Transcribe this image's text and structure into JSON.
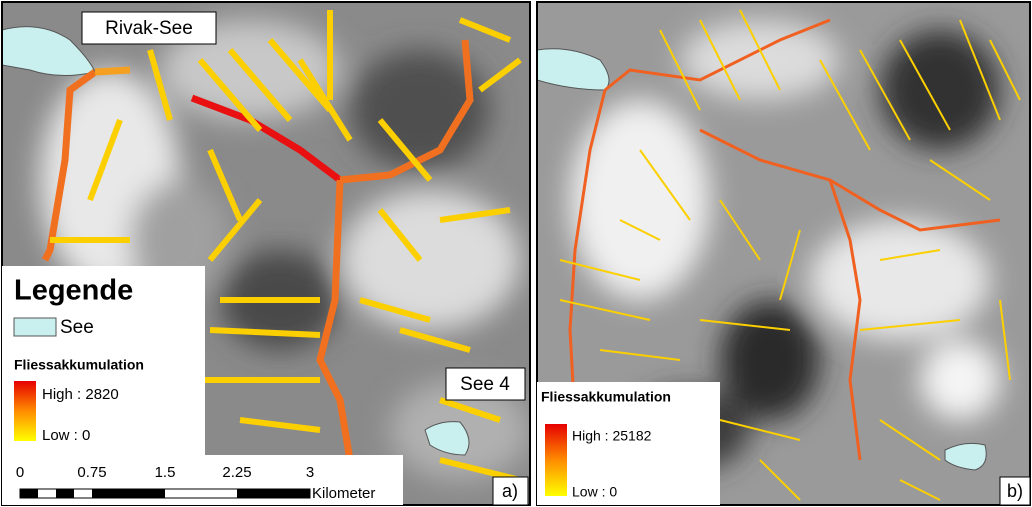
{
  "panel_a": {
    "lake_label": "Rivak-See",
    "lake_label_2": "See 4",
    "panel_label": "a)",
    "legend": {
      "title": "Legende",
      "lake": "See",
      "ramp_title": "Fliessakkumulation",
      "high": "High : 2820",
      "low": "Low : 0"
    },
    "scale_bar": {
      "labels": [
        "0",
        "0.75",
        "1.5",
        "2.25",
        "3"
      ],
      "unit": "Kilometer"
    }
  },
  "panel_b": {
    "panel_label": "b)",
    "legend": {
      "ramp_title": "Fliessakkumulation",
      "high": "High : 25182",
      "low": "Low : 0"
    }
  }
}
